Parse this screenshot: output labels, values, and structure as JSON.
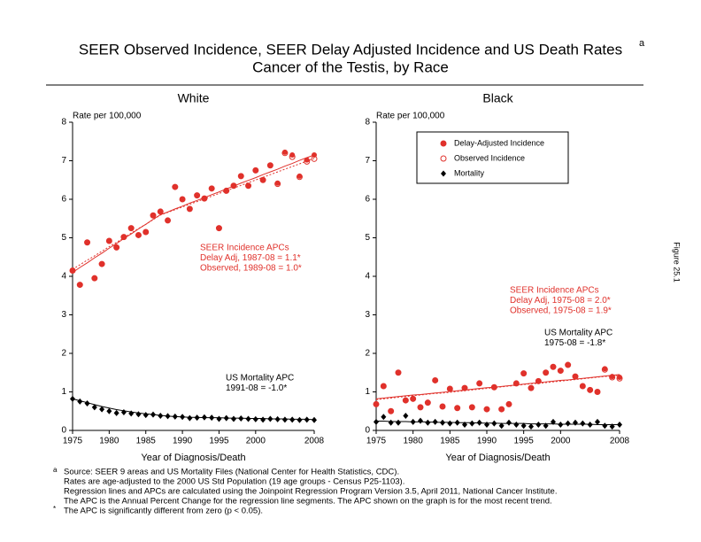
{
  "title_lines": [
    "SEER Observed Incidence, SEER Delay Adjusted Incidence and US Death Rates",
    "Cancer of the Testis, by Race"
  ],
  "title_note_marker": "a",
  "figure_label": "Figure 25.1",
  "footnotes": [
    {
      "marker": "a",
      "lines": [
        "Source: SEER 9 areas and US Mortality Files (National Center for Health Statistics, CDC).",
        "Rates are age-adjusted to the 2000 US Std Population (19 age groups - Census P25-1103).",
        "Regression lines and APCs are calculated using the Joinpoint Regression Program Version 3.5, April 2011, National Cancer Institute.",
        "The APC is the Annual Percent Change for the regression line segments. The APC shown on the graph is for the most recent trend."
      ]
    },
    {
      "marker": "*",
      "lines": [
        "The APC is significantly different from zero (p < 0.05)."
      ]
    }
  ],
  "chart_data": [
    {
      "type": "scatter",
      "title": "White",
      "y_label": "Rate per 100,000",
      "x_label": "Year of Diagnosis/Death",
      "x": [
        1975,
        1976,
        1977,
        1978,
        1979,
        1980,
        1981,
        1982,
        1983,
        1984,
        1985,
        1986,
        1987,
        1988,
        1989,
        1990,
        1991,
        1992,
        1993,
        1994,
        1995,
        1996,
        1997,
        1998,
        1999,
        2000,
        2001,
        2002,
        2003,
        2004,
        2005,
        2006,
        2007,
        2008
      ],
      "xlim": [
        1975,
        2008
      ],
      "xticks": [
        1975,
        1980,
        1985,
        1990,
        1995,
        2000,
        2008
      ],
      "ylim": [
        0,
        8
      ],
      "yticks": [
        0,
        1,
        2,
        3,
        4,
        5,
        6,
        7,
        8
      ],
      "legend": false,
      "series": [
        {
          "name": "Delay-Adjusted Incidence",
          "color": "#e0312b",
          "marker": "filled-circle",
          "values": [
            4.15,
            3.78,
            4.88,
            3.95,
            4.32,
            4.92,
            4.75,
            5.02,
            5.25,
            5.07,
            5.15,
            5.58,
            5.68,
            5.45,
            6.32,
            6.0,
            5.75,
            6.1,
            6.02,
            6.28,
            5.25,
            6.22,
            6.35,
            6.6,
            6.35,
            6.75,
            6.5,
            6.88,
            6.42,
            7.22,
            7.15,
            6.6,
            7.02,
            7.15
          ]
        },
        {
          "name": "Observed Incidence",
          "color": "#e0312b",
          "marker": "open-circle",
          "values": [
            4.15,
            3.78,
            4.88,
            3.95,
            4.32,
            4.92,
            4.75,
            5.02,
            5.25,
            5.07,
            5.15,
            5.58,
            5.68,
            5.45,
            6.32,
            6.0,
            5.75,
            6.1,
            6.02,
            6.28,
            5.25,
            6.22,
            6.35,
            6.6,
            6.35,
            6.75,
            6.5,
            6.88,
            6.4,
            7.2,
            7.1,
            6.58,
            6.98,
            7.05
          ]
        },
        {
          "name": "Mortality",
          "color": "#000000",
          "marker": "diamond",
          "values": [
            0.82,
            0.75,
            0.7,
            0.6,
            0.55,
            0.5,
            0.45,
            0.47,
            0.44,
            0.42,
            0.4,
            0.41,
            0.38,
            0.37,
            0.36,
            0.35,
            0.32,
            0.33,
            0.34,
            0.33,
            0.3,
            0.32,
            0.3,
            0.31,
            0.3,
            0.29,
            0.28,
            0.3,
            0.29,
            0.28,
            0.28,
            0.27,
            0.28,
            0.27
          ]
        }
      ],
      "trend_lines": [
        {
          "color": "#e0312b",
          "dash": false,
          "values": [
            4.1,
            4.23,
            4.35,
            4.48,
            4.6,
            4.73,
            4.85,
            4.98,
            5.1,
            5.23,
            5.35,
            5.48,
            5.6,
            5.67,
            5.75,
            5.82,
            5.9,
            5.97,
            6.04,
            6.12,
            6.19,
            6.27,
            6.34,
            6.42,
            6.49,
            6.56,
            6.64,
            6.71,
            6.78,
            6.86,
            6.93,
            7.01,
            7.08,
            7.15
          ]
        },
        {
          "color": "#e0312b",
          "dash": true,
          "values": [
            4.18,
            4.3,
            4.42,
            4.53,
            4.65,
            4.77,
            4.88,
            5.0,
            5.12,
            5.24,
            5.35,
            5.47,
            5.59,
            5.66,
            5.73,
            5.8,
            5.87,
            5.94,
            6.01,
            6.08,
            6.15,
            6.22,
            6.29,
            6.36,
            6.43,
            6.5,
            6.57,
            6.64,
            6.71,
            6.78,
            6.85,
            6.92,
            6.99,
            7.06
          ]
        },
        {
          "color": "#000000",
          "dash": false,
          "values": [
            0.82,
            0.77,
            0.72,
            0.67,
            0.62,
            0.58,
            0.54,
            0.51,
            0.48,
            0.45,
            0.43,
            0.41,
            0.39,
            0.37,
            0.36,
            0.35,
            0.34,
            0.34,
            0.33,
            0.33,
            0.33,
            0.32,
            0.32,
            0.32,
            0.31,
            0.31,
            0.31,
            0.3,
            0.3,
            0.3,
            0.29,
            0.29,
            0.29,
            0.28
          ]
        }
      ],
      "annotations": [
        {
          "color": "#e0312b",
          "lines": [
            "SEER Incidence APCs",
            "Delay Adj, 1987-08 = 1.1*",
            "Observed, 1989-08 = 1.0*"
          ]
        },
        {
          "color": "#000000",
          "lines": [
            "US Mortality APC",
            "1991-08 = -1.0*"
          ]
        }
      ]
    },
    {
      "type": "scatter",
      "title": "Black",
      "y_label": "Rate per 100,000",
      "x_label": "Year of Diagnosis/Death",
      "x": [
        1975,
        1976,
        1977,
        1978,
        1979,
        1980,
        1981,
        1982,
        1983,
        1984,
        1985,
        1986,
        1987,
        1988,
        1989,
        1990,
        1991,
        1992,
        1993,
        1994,
        1995,
        1996,
        1997,
        1998,
        1999,
        2000,
        2001,
        2002,
        2003,
        2004,
        2005,
        2006,
        2007,
        2008
      ],
      "xlim": [
        1975,
        2008
      ],
      "xticks": [
        1975,
        1980,
        1985,
        1990,
        1995,
        2000,
        2008
      ],
      "ylim": [
        0,
        8
      ],
      "yticks": [
        0,
        1,
        2,
        3,
        4,
        5,
        6,
        7,
        8
      ],
      "legend": true,
      "legend_position": "top",
      "series": [
        {
          "name": "Delay-Adjusted Incidence",
          "color": "#e0312b",
          "marker": "filled-circle",
          "values": [
            0.68,
            1.15,
            0.5,
            1.5,
            0.78,
            0.82,
            0.6,
            0.72,
            1.3,
            0.62,
            1.08,
            0.58,
            1.1,
            0.6,
            1.22,
            0.55,
            1.12,
            0.55,
            0.68,
            1.22,
            1.48,
            1.1,
            1.28,
            1.5,
            1.65,
            1.55,
            1.7,
            1.4,
            1.15,
            1.05,
            1.0,
            1.6,
            1.4,
            1.38
          ]
        },
        {
          "name": "Observed Incidence",
          "color": "#e0312b",
          "marker": "open-circle",
          "values": [
            0.68,
            1.15,
            0.5,
            1.5,
            0.78,
            0.82,
            0.6,
            0.72,
            1.3,
            0.62,
            1.08,
            0.58,
            1.1,
            0.6,
            1.22,
            0.55,
            1.12,
            0.55,
            0.68,
            1.22,
            1.48,
            1.1,
            1.28,
            1.5,
            1.65,
            1.55,
            1.7,
            1.4,
            1.15,
            1.05,
            1.0,
            1.58,
            1.38,
            1.35
          ]
        },
        {
          "name": "Mortality",
          "color": "#000000",
          "marker": "diamond",
          "values": [
            0.22,
            0.35,
            0.2,
            0.2,
            0.38,
            0.22,
            0.25,
            0.2,
            0.22,
            0.2,
            0.18,
            0.2,
            0.15,
            0.18,
            0.2,
            0.15,
            0.18,
            0.12,
            0.2,
            0.15,
            0.12,
            0.1,
            0.15,
            0.12,
            0.22,
            0.15,
            0.18,
            0.2,
            0.18,
            0.15,
            0.22,
            0.12,
            0.1,
            0.15
          ]
        }
      ],
      "trend_lines": [
        {
          "color": "#e0312b",
          "dash": false,
          "values": [
            0.82,
            0.84,
            0.86,
            0.88,
            0.9,
            0.92,
            0.93,
            0.95,
            0.97,
            0.99,
            1.01,
            1.03,
            1.05,
            1.07,
            1.09,
            1.11,
            1.12,
            1.14,
            1.16,
            1.18,
            1.2,
            1.22,
            1.24,
            1.26,
            1.28,
            1.3,
            1.31,
            1.33,
            1.35,
            1.37,
            1.39,
            1.41,
            1.43,
            1.45
          ]
        },
        {
          "color": "#e0312b",
          "dash": true,
          "values": [
            0.8,
            0.82,
            0.84,
            0.86,
            0.88,
            0.9,
            0.92,
            0.94,
            0.96,
            0.97,
            0.99,
            1.01,
            1.03,
            1.05,
            1.07,
            1.09,
            1.11,
            1.13,
            1.15,
            1.17,
            1.19,
            1.21,
            1.22,
            1.24,
            1.26,
            1.28,
            1.3,
            1.32,
            1.34,
            1.36,
            1.38,
            1.4,
            1.41,
            1.43
          ]
        },
        {
          "color": "#000000",
          "dash": false,
          "values": [
            0.24,
            0.24,
            0.23,
            0.23,
            0.23,
            0.22,
            0.22,
            0.22,
            0.21,
            0.21,
            0.21,
            0.2,
            0.2,
            0.2,
            0.19,
            0.19,
            0.19,
            0.18,
            0.18,
            0.18,
            0.18,
            0.17,
            0.17,
            0.17,
            0.17,
            0.16,
            0.16,
            0.16,
            0.16,
            0.16,
            0.15,
            0.15,
            0.15,
            0.15
          ]
        }
      ],
      "annotations": [
        {
          "color": "#e0312b",
          "lines": [
            "SEER Incidence APCs",
            "Delay Adj, 1975-08 = 2.0*",
            "Observed, 1975-08 = 1.9*"
          ]
        },
        {
          "color": "#000000",
          "lines": [
            "US Mortality APC",
            "1975-08 = -1.8*"
          ]
        }
      ]
    }
  ]
}
